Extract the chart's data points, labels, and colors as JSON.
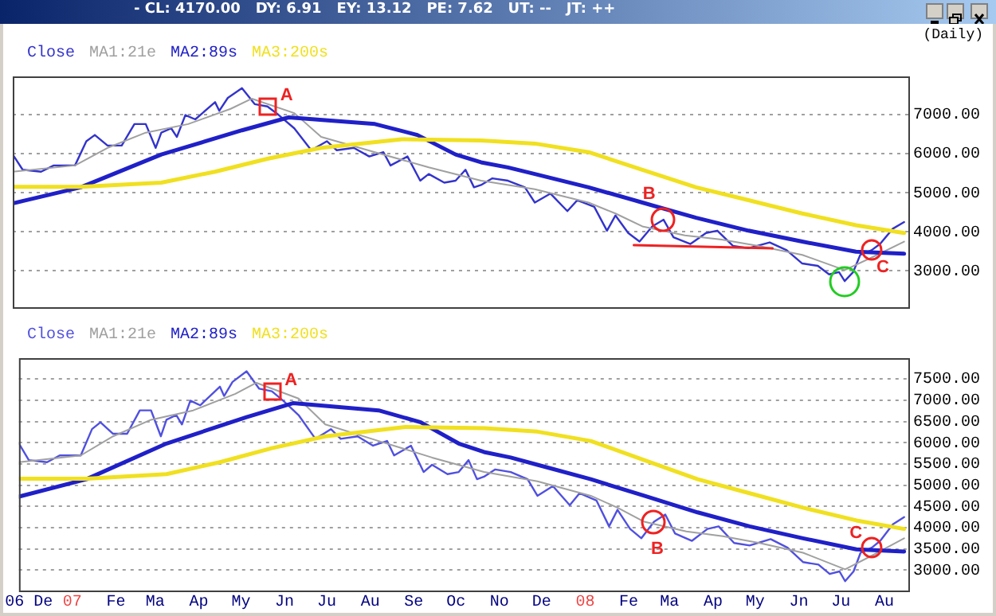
{
  "chart_data": [
    {
      "type": "line",
      "title": "- CL: 4170.00   DY: 6.91   EY: 13.12   PE: 7.62   UT: --   JT: ++",
      "subtitle": "(Daily)",
      "legend": "top left",
      "grid": "y",
      "marker": "none",
      "line_style": "solid",
      "tick_labels": "y",
      "xlim": [
        "2006-11-24",
        "2008-08-18"
      ],
      "ylim": [
        2070,
        7980
      ],
      "yticks": [
        {
          "value": 3000,
          "label": "3000.00"
        },
        {
          "value": 4000,
          "label": "4000.00"
        },
        {
          "value": 5000,
          "label": "5000.00"
        },
        {
          "value": 6000,
          "label": "6000.00"
        },
        {
          "value": 7000,
          "label": "7000.00"
        }
      ],
      "annotations": [
        {
          "text": "A",
          "x": "2007-05-23",
          "y": 7210
        },
        {
          "text": "B",
          "x": "2008-02-27",
          "y": 4310
        },
        {
          "text": "C",
          "x": "2008-07-23",
          "y": 3530
        }
      ],
      "series": [
        {
          "name": "Close",
          "color": "#3333cc",
          "x": [
            "2006-11-24",
            "2006-12-01",
            "2006-12-14",
            "2006-12-23",
            "2007-01-07",
            "2007-01-15",
            "2007-01-21",
            "2007-01-30",
            "2007-02-09",
            "2007-02-18",
            "2007-02-26",
            "2007-03-05",
            "2007-03-09",
            "2007-03-16",
            "2007-03-20",
            "2007-03-26",
            "2007-04-02",
            "2007-04-16",
            "2007-04-19",
            "2007-04-25",
            "2007-05-05",
            "2007-05-14",
            "2007-05-23",
            "2007-05-31",
            "2007-06-11",
            "2007-06-23",
            "2007-07-04",
            "2007-07-11",
            "2007-07-23",
            "2007-08-03",
            "2007-08-13",
            "2007-08-18",
            "2007-08-30",
            "2007-09-08",
            "2007-09-14",
            "2007-09-25",
            "2007-10-03",
            "2007-10-10",
            "2007-10-16",
            "2007-10-21",
            "2007-10-29",
            "2007-11-09",
            "2007-11-21",
            "2007-11-28",
            "2007-12-09",
            "2007-12-21",
            "2007-12-28",
            "2008-01-09",
            "2008-01-18",
            "2008-01-24",
            "2008-02-02",
            "2008-02-10",
            "2008-02-19",
            "2008-02-27",
            "2008-03-05",
            "2008-03-17",
            "2008-03-28",
            "2008-04-05",
            "2008-04-16",
            "2008-04-27",
            "2008-05-12",
            "2008-05-24",
            "2008-06-04",
            "2008-06-15",
            "2008-06-23",
            "2008-06-30",
            "2008-07-04",
            "2008-07-10",
            "2008-07-15",
            "2008-07-23",
            "2008-07-29",
            "2008-08-07",
            "2008-08-15"
          ],
          "values": [
            5980,
            5590,
            5540,
            5700,
            5700,
            6320,
            6480,
            6210,
            6210,
            6760,
            6760,
            6150,
            6540,
            6650,
            6430,
            6990,
            6880,
            7320,
            7100,
            7430,
            7680,
            7270,
            7210,
            6990,
            6650,
            6090,
            6320,
            6090,
            6150,
            5930,
            6040,
            5700,
            5930,
            5310,
            5480,
            5260,
            5310,
            5590,
            5140,
            5200,
            5370,
            5310,
            5140,
            4750,
            4980,
            4530,
            4810,
            4640,
            4030,
            4420,
            3970,
            3750,
            4140,
            4310,
            3860,
            3690,
            3970,
            4030,
            3640,
            3580,
            3730,
            3530,
            3190,
            3130,
            2910,
            2970,
            2740,
            2970,
            3410,
            3530,
            3690,
            4080,
            4250
          ]
        },
        {
          "name": "MA1:21e",
          "color": "#a0a0a0",
          "x": [
            "2006-11-24",
            "2007-01-07",
            "2007-01-30",
            "2007-02-26",
            "2007-03-28",
            "2007-04-27",
            "2007-05-12",
            "2007-06-11",
            "2007-06-30",
            "2007-08-07",
            "2007-09-14",
            "2007-10-21",
            "2007-11-28",
            "2008-01-05",
            "2008-01-24",
            "2008-02-12",
            "2008-03-13",
            "2008-04-08",
            "2008-05-04",
            "2008-06-04",
            "2008-07-04",
            "2008-07-27",
            "2008-08-15"
          ],
          "values": [
            5540,
            5700,
            6150,
            6540,
            6760,
            7150,
            7410,
            7040,
            6430,
            6040,
            5650,
            5310,
            5090,
            4750,
            4470,
            4140,
            3910,
            3800,
            3640,
            3410,
            3020,
            3410,
            3750
          ]
        },
        {
          "name": "MA2:89s",
          "color": "#2020c8",
          "x": [
            "2006-11-24",
            "2007-01-11",
            "2007-03-09",
            "2007-05-05",
            "2007-06-07",
            "2007-08-07",
            "2007-09-06",
            "2007-10-03",
            "2007-10-21",
            "2007-11-09",
            "2007-11-28",
            "2008-01-05",
            "2008-02-12",
            "2008-03-21",
            "2008-04-27",
            "2008-06-04",
            "2008-07-12",
            "2008-08-15"
          ],
          "values": [
            4730,
            5140,
            5980,
            6600,
            6930,
            6760,
            6480,
            5980,
            5780,
            5650,
            5480,
            5140,
            4750,
            4360,
            4030,
            3750,
            3490,
            3440
          ]
        },
        {
          "name": "MA3:200s",
          "color": "#f0e020",
          "x": [
            "2006-11-24",
            "2007-01-11",
            "2007-03-09",
            "2007-04-16",
            "2007-05-23",
            "2007-06-30",
            "2007-08-26",
            "2007-10-21",
            "2007-11-28",
            "2008-01-05",
            "2008-02-12",
            "2008-03-21",
            "2008-04-27",
            "2008-06-04",
            "2008-07-12",
            "2008-08-15"
          ],
          "values": [
            5150,
            5150,
            5260,
            5540,
            5870,
            6150,
            6370,
            6340,
            6260,
            6040,
            5590,
            5140,
            4810,
            4470,
            4170,
            3970
          ]
        },
        {
          "color": "#ee2222",
          "x": [
            "2008-02-06",
            "2008-05-14"
          ],
          "values": [
            3660,
            3580
          ]
        }
      ]
    },
    {
      "type": "line",
      "legend": "top left",
      "grid": "y",
      "marker": "none",
      "line_style": "solid",
      "xlim": [
        "2006-11-24",
        "2008-08-18"
      ],
      "ylim": [
        2520,
        7990
      ],
      "xticks": [
        {
          "value": "2006-12-01",
          "label": "06 De"
        },
        {
          "value": "2007-01-01",
          "label": "07"
        },
        {
          "value": "2007-02-01",
          "label": "Fe"
        },
        {
          "value": "2007-03-01",
          "label": "Ma"
        },
        {
          "value": "2007-04-01",
          "label": "Ap"
        },
        {
          "value": "2007-05-01",
          "label": "My"
        },
        {
          "value": "2007-06-01",
          "label": "Jn"
        },
        {
          "value": "2007-07-01",
          "label": "Ju"
        },
        {
          "value": "2007-08-01",
          "label": "Au"
        },
        {
          "value": "2007-09-01",
          "label": "Se"
        },
        {
          "value": "2007-10-01",
          "label": "Oc"
        },
        {
          "value": "2007-11-01",
          "label": "No"
        },
        {
          "value": "2007-12-01",
          "label": "De"
        },
        {
          "value": "2008-01-01",
          "label": "08"
        },
        {
          "value": "2008-02-01",
          "label": "Fe"
        },
        {
          "value": "2008-03-01",
          "label": "Ma"
        },
        {
          "value": "2008-04-01",
          "label": "Ap"
        },
        {
          "value": "2008-05-01",
          "label": "My"
        },
        {
          "value": "2008-06-01",
          "label": "Jn"
        },
        {
          "value": "2008-07-01",
          "label": "Ju"
        },
        {
          "value": "2008-08-01",
          "label": "Au"
        }
      ],
      "yticks": [
        {
          "value": 3000,
          "label": "3000.00"
        },
        {
          "value": 3500,
          "label": "3500.00"
        },
        {
          "value": 4000,
          "label": "4000.00"
        },
        {
          "value": 4500,
          "label": "4500.00"
        },
        {
          "value": 5000,
          "label": "5000.00"
        },
        {
          "value": 5500,
          "label": "5500.00"
        },
        {
          "value": 6000,
          "label": "6000.00"
        },
        {
          "value": 6500,
          "label": "6500.00"
        },
        {
          "value": 7000,
          "label": "7000.00"
        },
        {
          "value": 7500,
          "label": "7500.00"
        }
      ],
      "annotations": [
        {
          "text": "A",
          "x": "2007-05-23",
          "y": 7210
        },
        {
          "text": "B",
          "x": "2008-02-19",
          "y": 4140
        },
        {
          "text": "C",
          "x": "2008-07-23",
          "y": 3530
        }
      ],
      "series": [
        {
          "name": "Close",
          "color": "#5050e0",
          "x": [
            "2006-11-24",
            "2006-12-01",
            "2006-12-14",
            "2006-12-23",
            "2007-01-07",
            "2007-01-15",
            "2007-01-21",
            "2007-01-30",
            "2007-02-09",
            "2007-02-18",
            "2007-02-26",
            "2007-03-05",
            "2007-03-09",
            "2007-03-16",
            "2007-03-20",
            "2007-03-26",
            "2007-04-02",
            "2007-04-16",
            "2007-04-19",
            "2007-04-25",
            "2007-05-05",
            "2007-05-14",
            "2007-05-23",
            "2007-05-31",
            "2007-06-11",
            "2007-06-23",
            "2007-07-04",
            "2007-07-11",
            "2007-07-23",
            "2007-08-03",
            "2007-08-13",
            "2007-08-18",
            "2007-08-30",
            "2007-09-08",
            "2007-09-14",
            "2007-09-25",
            "2007-10-03",
            "2007-10-10",
            "2007-10-16",
            "2007-10-21",
            "2007-10-29",
            "2007-11-09",
            "2007-11-21",
            "2007-11-28",
            "2007-12-09",
            "2007-12-21",
            "2007-12-28",
            "2008-01-09",
            "2008-01-18",
            "2008-01-24",
            "2008-02-02",
            "2008-02-10",
            "2008-02-19",
            "2008-02-27",
            "2008-03-05",
            "2008-03-17",
            "2008-03-28",
            "2008-04-05",
            "2008-04-16",
            "2008-04-27",
            "2008-05-12",
            "2008-05-24",
            "2008-06-04",
            "2008-06-15",
            "2008-06-23",
            "2008-06-30",
            "2008-07-04",
            "2008-07-10",
            "2008-07-15",
            "2008-07-23",
            "2008-07-29",
            "2008-08-07",
            "2008-08-15"
          ],
          "values": [
            5980,
            5590,
            5540,
            5700,
            5700,
            6320,
            6480,
            6210,
            6210,
            6760,
            6760,
            6150,
            6540,
            6650,
            6430,
            6990,
            6880,
            7320,
            7100,
            7430,
            7680,
            7270,
            7210,
            6990,
            6650,
            6090,
            6320,
            6090,
            6150,
            5930,
            6040,
            5700,
            5930,
            5310,
            5480,
            5260,
            5310,
            5590,
            5140,
            5200,
            5370,
            5310,
            5140,
            4750,
            4980,
            4530,
            4810,
            4640,
            4030,
            4420,
            3970,
            3750,
            4140,
            4310,
            3860,
            3690,
            3970,
            4030,
            3640,
            3580,
            3730,
            3530,
            3190,
            3130,
            2910,
            2970,
            2740,
            2970,
            3410,
            3530,
            3690,
            4080,
            4250
          ]
        },
        {
          "name": "MA1:21e",
          "color": "#a0a0a0",
          "x": [
            "2006-11-24",
            "2007-01-07",
            "2007-01-30",
            "2007-02-26",
            "2007-03-28",
            "2007-04-27",
            "2007-05-12",
            "2007-06-11",
            "2007-06-30",
            "2007-08-07",
            "2007-09-14",
            "2007-10-21",
            "2007-11-28",
            "2008-01-05",
            "2008-01-24",
            "2008-02-12",
            "2008-03-13",
            "2008-04-08",
            "2008-05-04",
            "2008-06-04",
            "2008-07-04",
            "2008-07-27",
            "2008-08-15"
          ],
          "values": [
            5540,
            5700,
            6150,
            6540,
            6760,
            7150,
            7410,
            7040,
            6430,
            6040,
            5650,
            5310,
            5090,
            4750,
            4470,
            4140,
            3910,
            3800,
            3640,
            3410,
            3020,
            3410,
            3750
          ]
        },
        {
          "name": "MA2:89s",
          "color": "#2020c8",
          "x": [
            "2006-11-24",
            "2007-01-11",
            "2007-03-09",
            "2007-05-05",
            "2007-06-07",
            "2007-08-07",
            "2007-09-06",
            "2007-10-03",
            "2007-10-21",
            "2007-11-09",
            "2007-11-28",
            "2008-01-05",
            "2008-02-12",
            "2008-03-21",
            "2008-04-27",
            "2008-06-04",
            "2008-07-12",
            "2008-08-15"
          ],
          "values": [
            4730,
            5140,
            5980,
            6600,
            6930,
            6760,
            6480,
            5980,
            5780,
            5650,
            5480,
            5140,
            4750,
            4360,
            4030,
            3750,
            3490,
            3440
          ]
        },
        {
          "name": "MA3:200s",
          "color": "#f0e020",
          "x": [
            "2006-11-24",
            "2007-01-11",
            "2007-03-09",
            "2007-04-16",
            "2007-05-23",
            "2007-06-30",
            "2007-08-26",
            "2007-10-21",
            "2007-11-28",
            "2008-01-05",
            "2008-02-12",
            "2008-03-21",
            "2008-04-27",
            "2008-06-04",
            "2008-07-12",
            "2008-08-15"
          ],
          "values": [
            5150,
            5150,
            5260,
            5540,
            5870,
            6150,
            6370,
            6340,
            6260,
            6040,
            5590,
            5140,
            4810,
            4470,
            4170,
            3970
          ]
        }
      ]
    }
  ]
}
